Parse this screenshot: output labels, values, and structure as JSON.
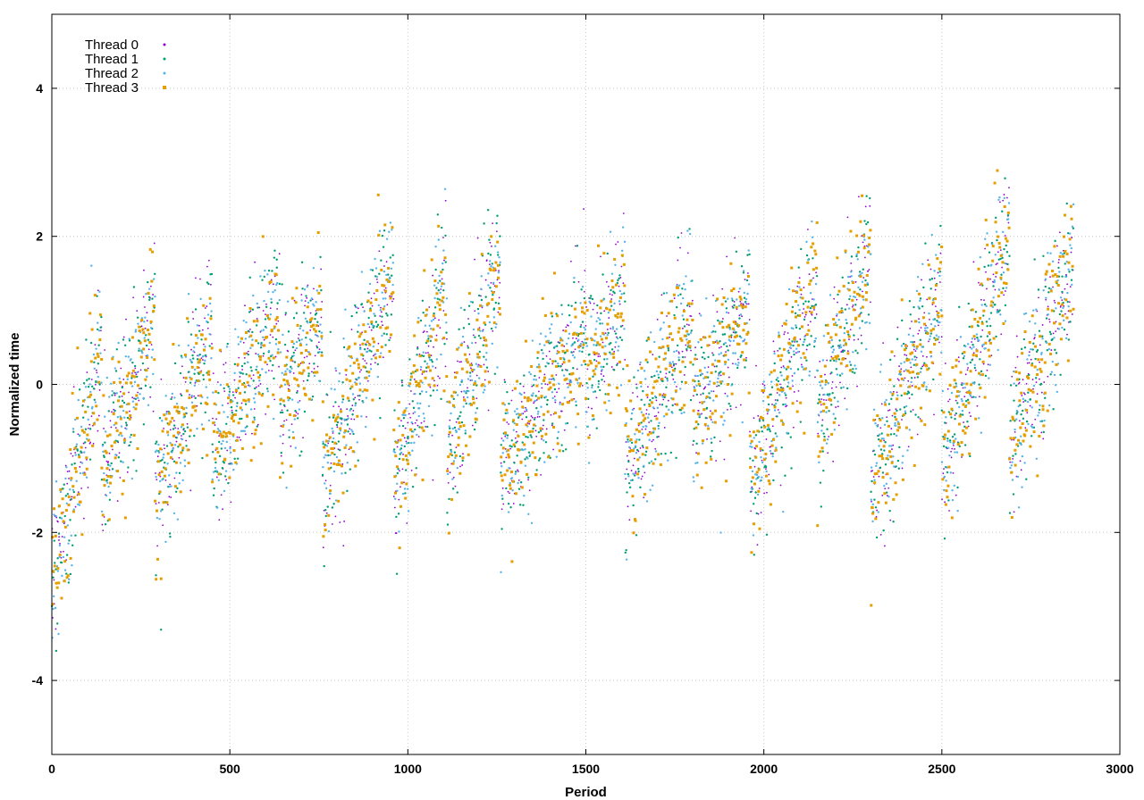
{
  "chart_data": {
    "type": "scatter",
    "title": "",
    "xlabel": "Period",
    "ylabel": "Normalized time",
    "xlim": [
      0,
      3000
    ],
    "ylim": [
      -5,
      5
    ],
    "xticks": [
      "0",
      "500",
      "1000",
      "1500",
      "2000",
      "2500",
      "3000"
    ],
    "yticks": [
      "-4",
      "-2",
      "0",
      "2",
      "4"
    ],
    "grid": true,
    "legend_position": "top-left",
    "n_points_per_series": 2870,
    "pattern": {
      "description_segments": [
        {
          "x_start": 0,
          "x_end": 140,
          "center_start": -2.6,
          "center_end": 0.4
        },
        {
          "x_start": 140,
          "x_end": 290,
          "center_start": -1.1,
          "center_end": 0.8
        },
        {
          "x_start": 290,
          "x_end": 450,
          "center_start": -1.5,
          "center_end": 0.8
        },
        {
          "x_start": 450,
          "x_end": 640,
          "center_start": -0.9,
          "center_end": 1.0
        },
        {
          "x_start": 640,
          "x_end": 760,
          "center_start": -0.3,
          "center_end": 0.9
        },
        {
          "x_start": 760,
          "x_end": 960,
          "center_start": -1.4,
          "center_end": 1.6
        },
        {
          "x_start": 960,
          "x_end": 1110,
          "center_start": -1.3,
          "center_end": 1.3
        },
        {
          "x_start": 1110,
          "x_end": 1260,
          "center_start": -1.0,
          "center_end": 1.6
        },
        {
          "x_start": 1260,
          "x_end": 1500,
          "center_start": -1.1,
          "center_end": 0.7
        },
        {
          "x_start": 1500,
          "x_end": 1610,
          "center_start": 0.2,
          "center_end": 1.2
        },
        {
          "x_start": 1610,
          "x_end": 1800,
          "center_start": -1.2,
          "center_end": 1.0
        },
        {
          "x_start": 1800,
          "x_end": 1960,
          "center_start": -0.4,
          "center_end": 1.1
        },
        {
          "x_start": 1960,
          "x_end": 2150,
          "center_start": -1.4,
          "center_end": 1.4
        },
        {
          "x_start": 2150,
          "x_end": 2300,
          "center_start": -0.6,
          "center_end": 1.8
        },
        {
          "x_start": 2300,
          "x_end": 2500,
          "center_start": -1.4,
          "center_end": 1.3
        },
        {
          "x_start": 2500,
          "x_end": 2690,
          "center_start": -1.2,
          "center_end": 2.1
        },
        {
          "x_start": 2690,
          "x_end": 2880,
          "center_start": -0.8,
          "center_end": 1.8
        }
      ],
      "spread": 0.75
    },
    "series": [
      {
        "name": "Thread 0",
        "color": "#9400d3",
        "marker": "plus"
      },
      {
        "name": "Thread 1",
        "color": "#009e73",
        "marker": "cross"
      },
      {
        "name": "Thread 2",
        "color": "#56b4e9",
        "marker": "star"
      },
      {
        "name": "Thread 3",
        "color": "#e69f00",
        "marker": "square"
      }
    ]
  }
}
